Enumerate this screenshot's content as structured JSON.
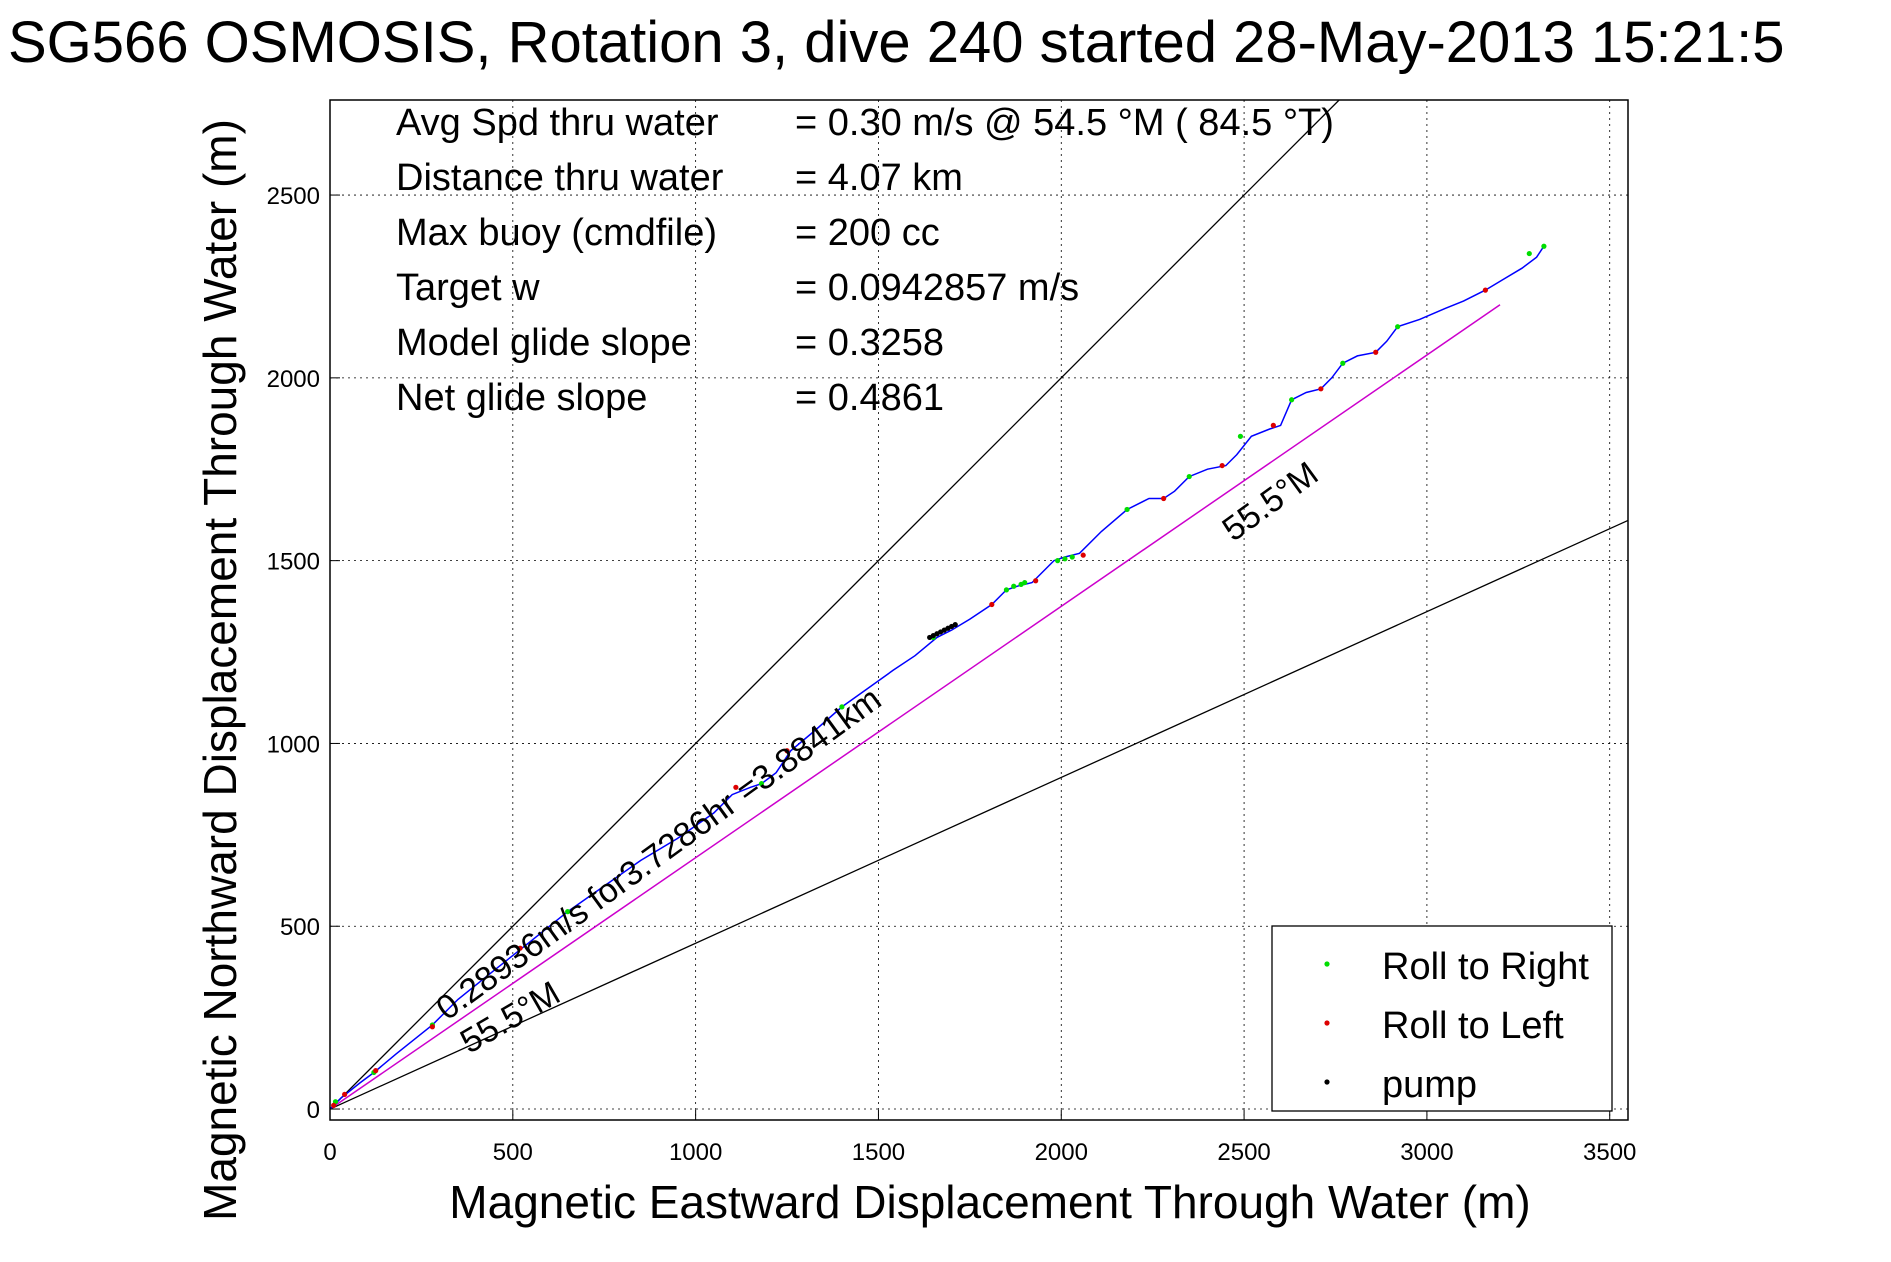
{
  "chart_data": {
    "type": "line",
    "title": "SG566 OSMOSIS, Rotation 3, dive 240 started 28-May-2013 15:21:5",
    "xlabel": "Magnetic Eastward Displacement Through Water (m)",
    "ylabel": "Magnetic Northward Displacement Through Water (m)",
    "xlim": [
      0,
      3550
    ],
    "ylim": [
      -30,
      2760
    ],
    "x_ticks": [
      0,
      500,
      1000,
      1500,
      2000,
      2500,
      3000,
      3500
    ],
    "y_ticks": [
      0,
      500,
      1000,
      1500,
      2000,
      2500
    ],
    "grid": true,
    "stats": [
      {
        "label": "Avg Spd thru water",
        "value": "=  0.30 m/s @  54.5 °M ( 84.5 °T)"
      },
      {
        "label": "Distance thru water",
        "value": "=  4.07 km"
      },
      {
        "label": "Max buoy (cmdfile)",
        "value": "= 200 cc"
      },
      {
        "label": "Target w",
        "value": "= 0.0942857 m/s"
      },
      {
        "label": "Model glide slope",
        "value": "= 0.3258"
      },
      {
        "label": "Net glide slope",
        "value": "= 0.4861"
      }
    ],
    "annotations": {
      "track_label": "0.28936m/s for3.7286hr =3.8841km",
      "heading_label_upper": "55.5°M",
      "heading_label_lower": "55.5°M"
    },
    "reference_lines": {
      "upper_bound_end": [
        2760,
        2760
      ],
      "lower_bound_end": [
        3550,
        1610
      ],
      "heading_line_end": [
        3200,
        2200
      ]
    },
    "series": [
      {
        "name": "track",
        "color": "#0000ff",
        "x": [
          0,
          30,
          80,
          120,
          180,
          230,
          280,
          350,
          450,
          550,
          650,
          750,
          850,
          950,
          1050,
          1100,
          1150,
          1180,
          1220,
          1260,
          1320,
          1400,
          1470,
          1540,
          1600,
          1660,
          1700,
          1750,
          1810,
          1850,
          1880,
          1920,
          1950,
          1980,
          2010,
          2050,
          2110,
          2180,
          2240,
          2280,
          2310,
          2350,
          2400,
          2450,
          2480,
          2520,
          2570,
          2600,
          2630,
          2670,
          2710,
          2740,
          2770,
          2810,
          2860,
          2890,
          2920,
          2980,
          3050,
          3100,
          3160,
          3210,
          3260,
          3300,
          3320
        ],
        "y": [
          0,
          30,
          70,
          100,
          150,
          190,
          230,
          300,
          380,
          460,
          540,
          610,
          680,
          740,
          810,
          860,
          880,
          890,
          920,
          980,
          1030,
          1100,
          1150,
          1200,
          1240,
          1290,
          1310,
          1340,
          1380,
          1420,
          1430,
          1440,
          1470,
          1500,
          1510,
          1520,
          1580,
          1640,
          1670,
          1670,
          1690,
          1730,
          1750,
          1760,
          1790,
          1840,
          1860,
          1870,
          1940,
          1960,
          1970,
          2000,
          2040,
          2060,
          2070,
          2100,
          2140,
          2160,
          2190,
          2210,
          2240,
          2270,
          2300,
          2330,
          2360
        ]
      }
    ],
    "markers": {
      "roll_right": {
        "name": "Roll to Right",
        "color": "#00dd00",
        "x": [
          15,
          120,
          280,
          650,
          1180,
          1400,
          1650,
          1850,
          1870,
          1890,
          1900,
          1990,
          2010,
          2030,
          2180,
          2350,
          2490,
          2630,
          2770,
          2920,
          3280,
          3320
        ],
        "y": [
          20,
          100,
          230,
          540,
          890,
          1100,
          1290,
          1420,
          1430,
          1435,
          1440,
          1500,
          1505,
          1510,
          1640,
          1730,
          1840,
          1940,
          2040,
          2140,
          2340,
          2360
        ]
      },
      "roll_left": {
        "name": "Roll to Left",
        "color": "#dd0000",
        "x": [
          10,
          40,
          125,
          280,
          520,
          1110,
          1250,
          1810,
          1930,
          2060,
          2280,
          2440,
          2580,
          2710,
          2860,
          3160
        ],
        "y": [
          10,
          40,
          105,
          225,
          440,
          880,
          980,
          1380,
          1445,
          1515,
          1670,
          1760,
          1870,
          1970,
          2070,
          2240
        ]
      },
      "pump": {
        "name": "pump",
        "color": "#000000",
        "x": [
          1640,
          1650,
          1660,
          1670,
          1680,
          1690,
          1700,
          1710
        ],
        "y": [
          1290,
          1295,
          1300,
          1305,
          1310,
          1315,
          1320,
          1325
        ]
      }
    },
    "legend": {
      "placement": "bottom-right",
      "entries": [
        "Roll to Right",
        "Roll to Left",
        "pump"
      ]
    }
  }
}
